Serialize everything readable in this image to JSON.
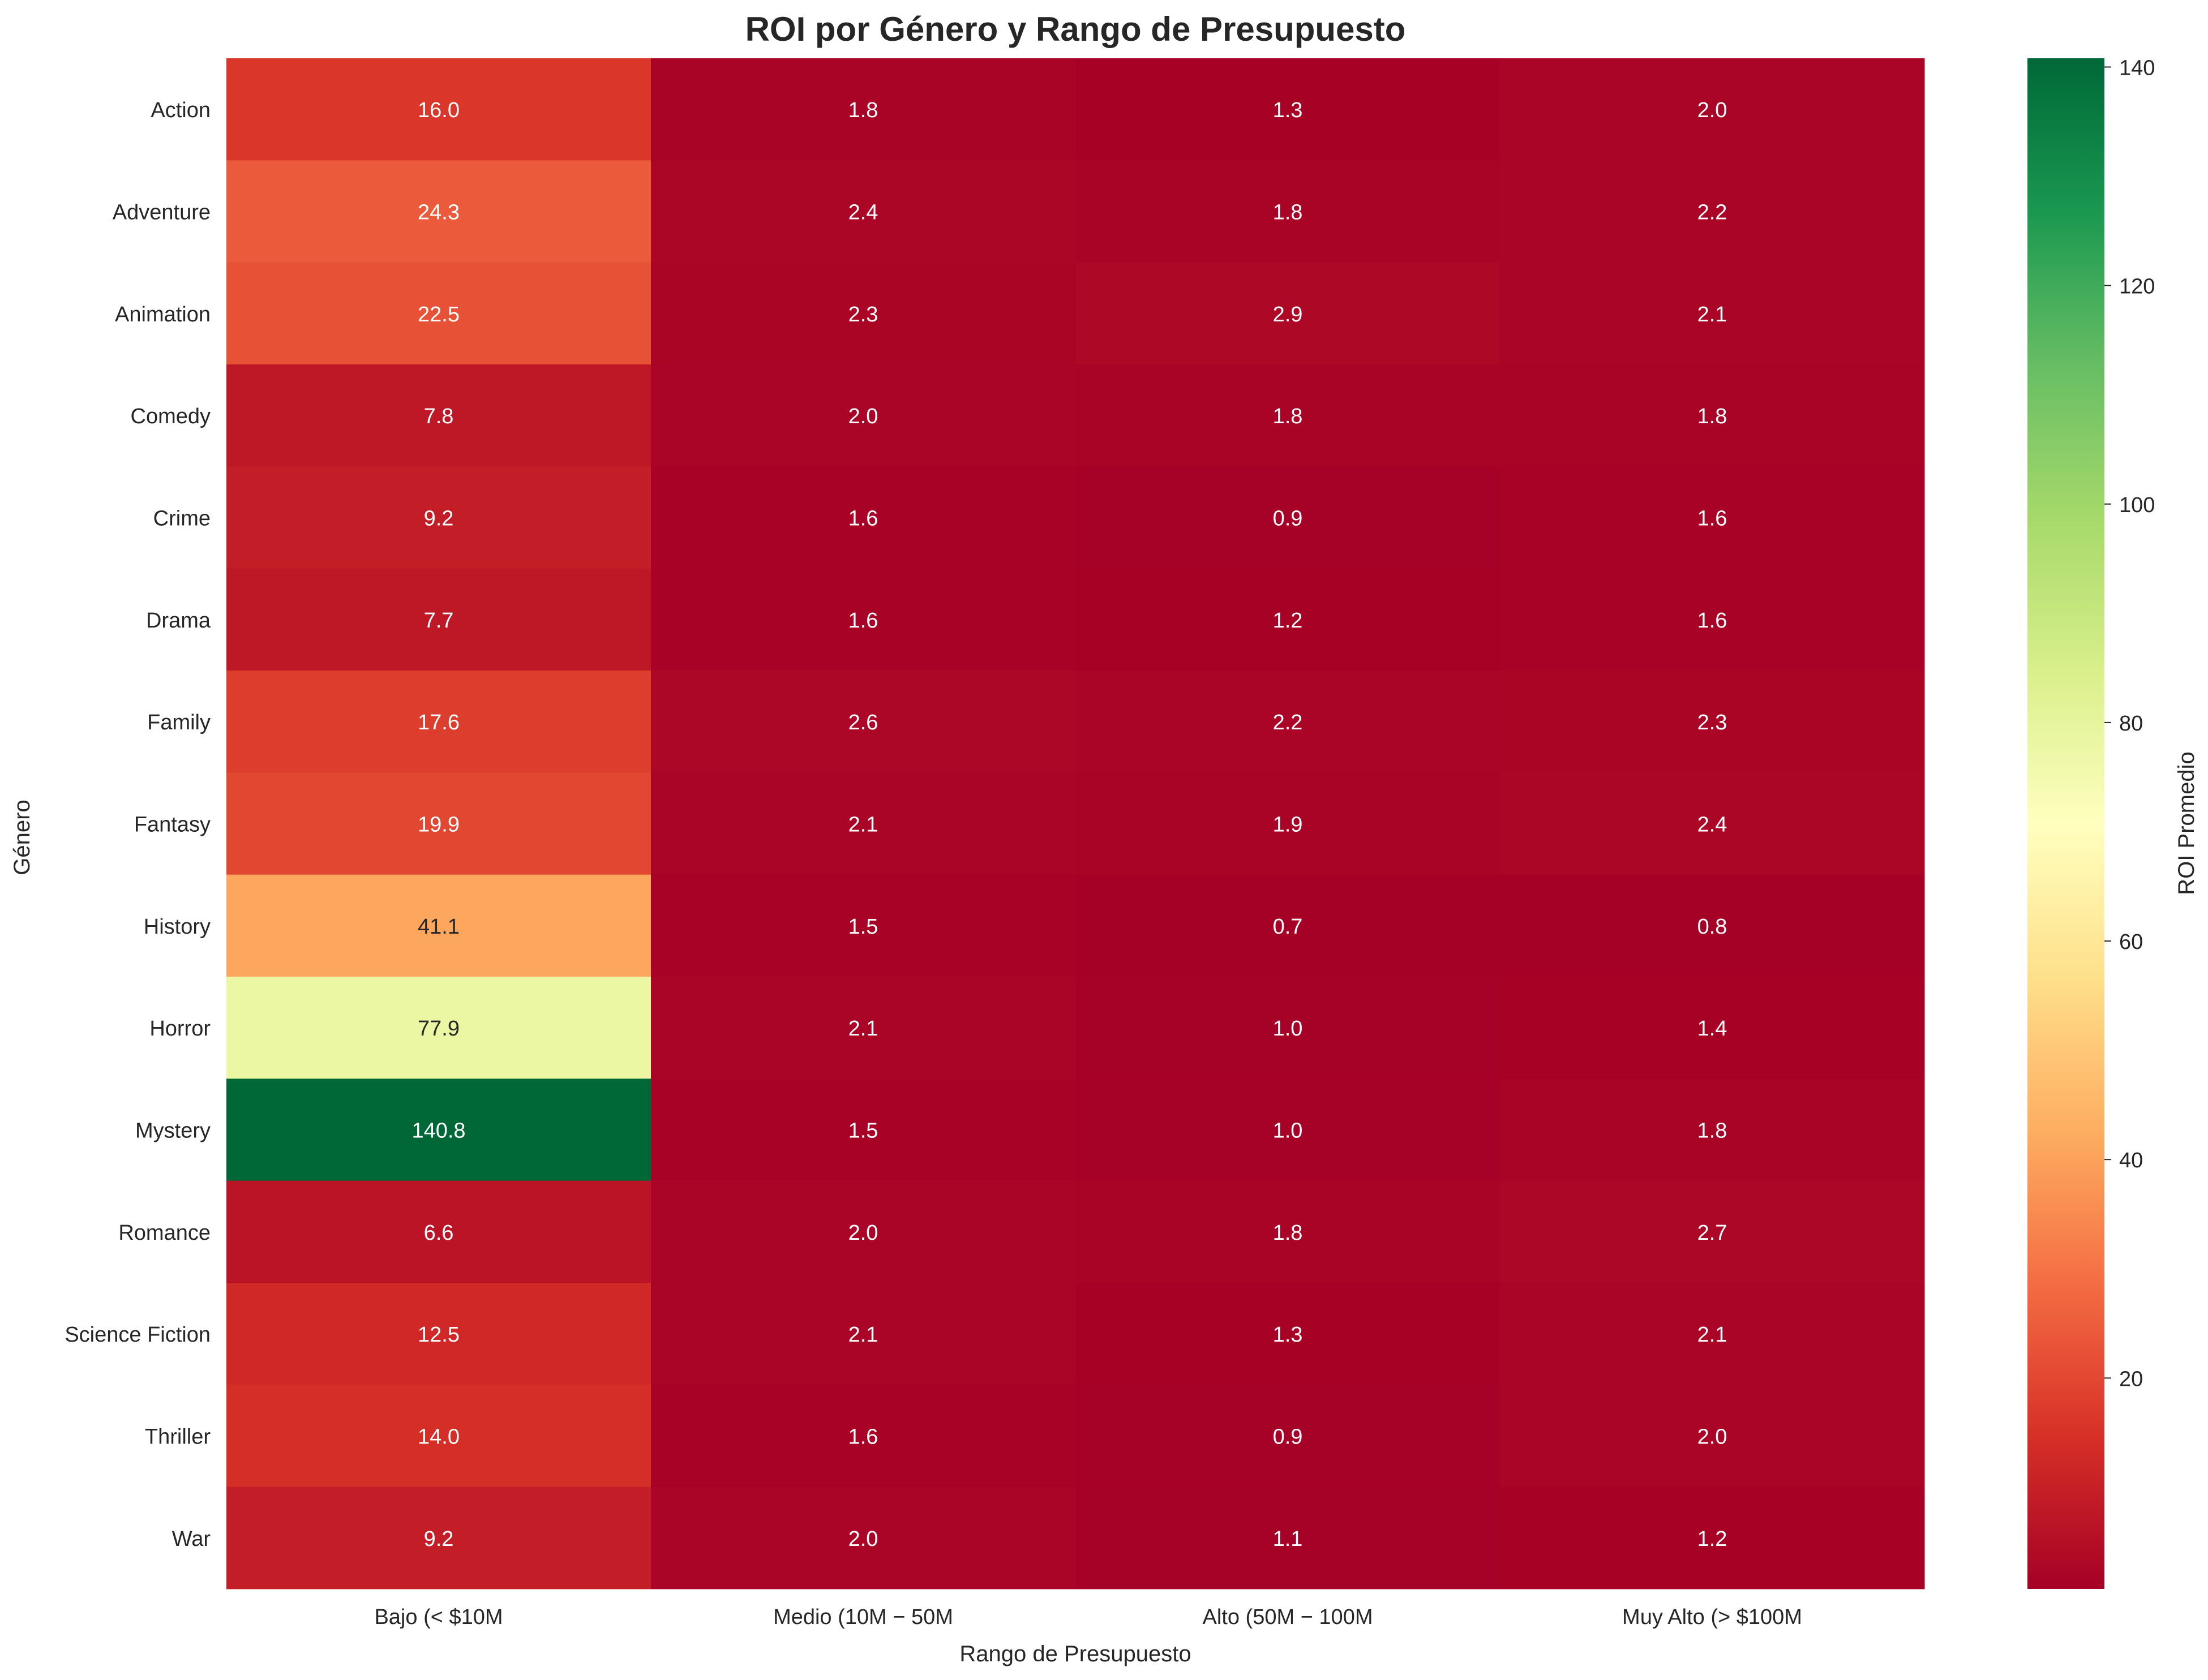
{
  "chart_data": {
    "type": "heatmap",
    "title": "ROI por Género y Rango de Presupuesto",
    "xlabel": "Rango de Presupuesto",
    "ylabel": "Género",
    "colorbar_label": "ROI Promedio",
    "colormap": "RdYlGn",
    "vmin": 0.7,
    "vmax": 140.8,
    "colorbar_ticks": [
      20,
      40,
      60,
      80,
      100,
      120,
      140
    ],
    "columns": [
      "Bajo (< $10M",
      "Medio ($10M - $50M",
      "Alto ($50M - $100M",
      "Muy Alto (> $100M"
    ],
    "column_tick_labels": [
      "Bajo (< $10M",
      "Medio (10M − 50M",
      "Alto (50M − 100M",
      "Muy Alto (> $100M"
    ],
    "rows": [
      "Action",
      "Adventure",
      "Animation",
      "Comedy",
      "Crime",
      "Drama",
      "Family",
      "Fantasy",
      "History",
      "Horror",
      "Mystery",
      "Romance",
      "Science Fiction",
      "Thriller",
      "War"
    ],
    "values": [
      [
        16.0,
        1.8,
        1.3,
        2.0
      ],
      [
        24.3,
        2.4,
        1.8,
        2.2
      ],
      [
        22.5,
        2.3,
        2.9,
        2.1
      ],
      [
        7.8,
        2.0,
        1.8,
        1.8
      ],
      [
        9.2,
        1.6,
        0.9,
        1.6
      ],
      [
        7.7,
        1.6,
        1.2,
        1.6
      ],
      [
        17.6,
        2.6,
        2.2,
        2.3
      ],
      [
        19.9,
        2.1,
        1.9,
        2.4
      ],
      [
        41.1,
        1.5,
        0.7,
        0.8
      ],
      [
        77.9,
        2.1,
        1.0,
        1.4
      ],
      [
        140.8,
        1.5,
        1.0,
        1.8
      ],
      [
        6.6,
        2.0,
        1.8,
        2.7
      ],
      [
        12.5,
        2.1,
        1.3,
        2.1
      ],
      [
        14.0,
        1.6,
        0.9,
        2.0
      ],
      [
        9.2,
        2.0,
        1.1,
        1.2
      ]
    ]
  }
}
